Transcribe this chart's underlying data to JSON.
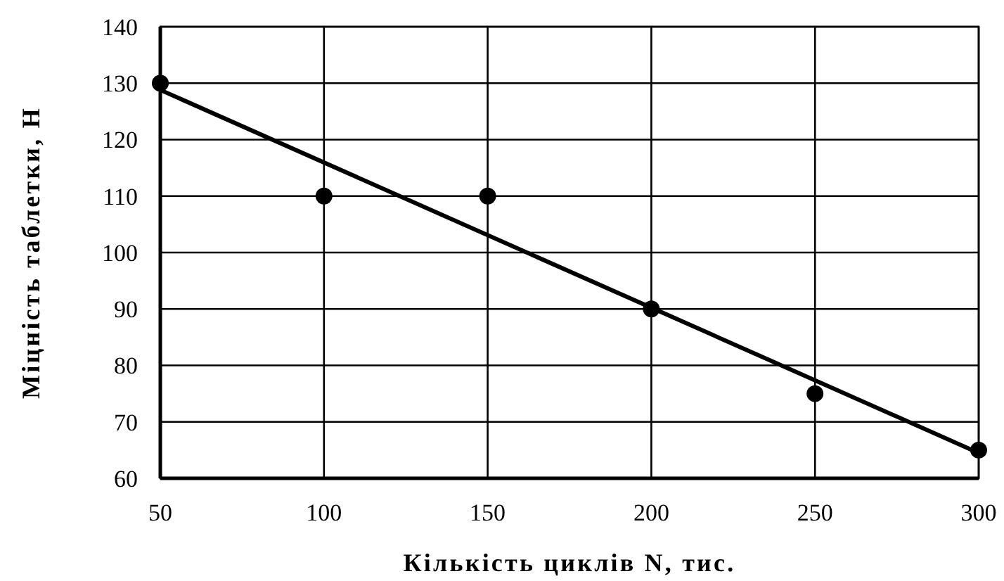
{
  "chart_data": {
    "type": "scatter",
    "xlabel": "Кількість циклів N, тис.",
    "ylabel": "Міцність таблетки, Н",
    "xlim": [
      50,
      300
    ],
    "xticks": [
      50,
      100,
      150,
      200,
      250,
      300
    ],
    "ylim": [
      60,
      140
    ],
    "yticks": [
      60,
      70,
      80,
      90,
      100,
      110,
      120,
      130,
      140
    ],
    "grid": true,
    "series": [
      {
        "color": "#000000",
        "marker": "circle",
        "x": [
          50,
          100,
          150,
          200,
          250,
          300
        ],
        "values": [
          130,
          110,
          110,
          90,
          75,
          65
        ]
      },
      {
        "type": "line",
        "color": "#000000",
        "marker": "none",
        "line_style": "solid",
        "x": [
          50,
          300
        ],
        "values": [
          128.8,
          64.5
        ]
      }
    ]
  }
}
